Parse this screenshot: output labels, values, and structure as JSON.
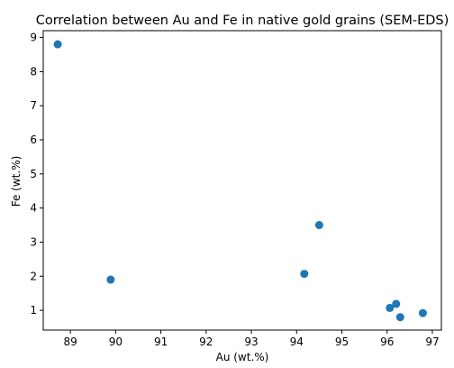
{
  "chart_data": {
    "type": "scatter",
    "title": "Correlation between Au and Fe in native gold grains (SEM-EDS)",
    "xlabel": "Au (wt.%)",
    "ylabel": "Fe (wt.%)",
    "xlim": [
      88.4,
      97.2
    ],
    "ylim": [
      0.42,
      9.2
    ],
    "xticks": [
      89,
      90,
      91,
      92,
      93,
      94,
      95,
      96,
      97
    ],
    "yticks": [
      1,
      2,
      3,
      4,
      5,
      6,
      7,
      8,
      9
    ],
    "grid": false,
    "marker_color": "#1f77b4",
    "points": [
      {
        "x": 88.72,
        "y": 8.8
      },
      {
        "x": 89.89,
        "y": 1.9
      },
      {
        "x": 94.17,
        "y": 2.07
      },
      {
        "x": 94.5,
        "y": 3.5
      },
      {
        "x": 96.06,
        "y": 1.07
      },
      {
        "x": 96.2,
        "y": 1.19
      },
      {
        "x": 96.29,
        "y": 0.8
      },
      {
        "x": 96.79,
        "y": 0.92
      }
    ]
  }
}
